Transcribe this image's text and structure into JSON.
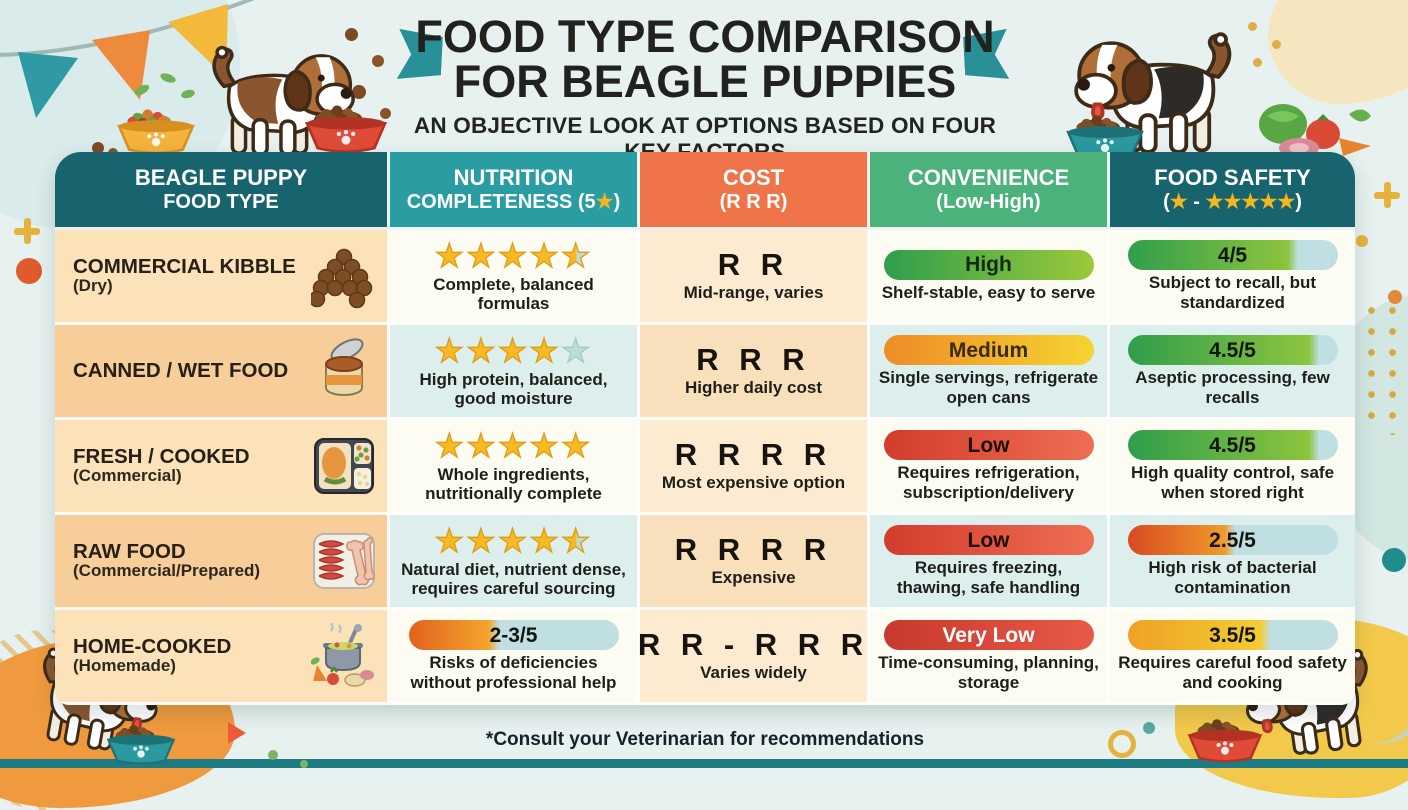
{
  "title": {
    "line1": "FOOD TYPE COMPARISON",
    "line2": "FOR BEAGLE PUPPIES",
    "subtitle": "AN OBJECTIVE LOOK AT OPTIONS BASED ON FOUR KEY FACTORS"
  },
  "footer": {
    "note": "*Consult your Veterinarian for recommendations"
  },
  "theme": {
    "background": "#e7f1ef",
    "header_dark_teal": "#17646e",
    "header_teal": "#2a9da2",
    "header_orange": "#f0744a",
    "header_green": "#4bb27b",
    "ribbon_teal": "#2a9097",
    "star_gold": "#f8ba24",
    "star_empty": "#bcdcd8",
    "pill_rest": "#bfdfe2",
    "bottom_strip": "#1e7b83",
    "blob_orange": "#ef9a3e",
    "blob_yellow": "#f2c94b"
  },
  "table": {
    "headers": [
      {
        "line1": "BEAGLE PUPPY",
        "line2": "FOOD TYPE",
        "color": "#17646e"
      },
      {
        "line1": "NUTRITION",
        "line2": "COMPLETENESS (5★)",
        "color": "#2a9da2"
      },
      {
        "line1": "COST",
        "line2": "(R R R)",
        "color": "#f0744a"
      },
      {
        "line1": "CONVENIENCE",
        "line2": "(Low-High)",
        "color": "#4bb27b"
      },
      {
        "line1": "FOOD SAFETY",
        "line2": "(★ - ★★★★★)",
        "color": "#17646e"
      }
    ],
    "rows": [
      {
        "food": {
          "name": "COMMERCIAL KIBBLE",
          "qualifier": "(Dry)",
          "icon": "kibble-pile-icon"
        },
        "nutrition": {
          "stars": 4.5,
          "note": "Complete, balanced formulas"
        },
        "cost": {
          "symbols": "R R",
          "note": "Mid-range, varies"
        },
        "convenience": {
          "level": "High",
          "note": "Shelf-stable, easy to serve",
          "pill": {
            "from": "#2f9e4c",
            "to": "#9cc93a",
            "text": "#132a10"
          }
        },
        "safety": {
          "score": "4/5",
          "note": "Subject to recall, but standardized",
          "pill": {
            "from": "#2f9e4c",
            "to": "#8cc43d",
            "fill": 0.8,
            "rest": "#bfdfe2",
            "text": "#14140f"
          }
        }
      },
      {
        "food": {
          "name": "CANNED / WET FOOD",
          "qualifier": "",
          "icon": "open-can-icon"
        },
        "nutrition": {
          "stars": 4,
          "note": "High protein, balanced, good moisture"
        },
        "cost": {
          "symbols": "R R R",
          "note": "Higher daily cost"
        },
        "convenience": {
          "level": "Medium",
          "note": "Single servings, refrigerate open cans",
          "pill": {
            "from": "#ee8c26",
            "to": "#f6d431",
            "text": "#3a2a06"
          }
        },
        "safety": {
          "score": "4.5/5",
          "note": "Aseptic processing, few recalls",
          "pill": {
            "from": "#2f9e4c",
            "to": "#8cc43d",
            "fill": 0.9,
            "rest": "#bfdfe2",
            "text": "#14140f"
          }
        }
      },
      {
        "food": {
          "name": "FRESH / COOKED",
          "qualifier": "(Commercial)",
          "icon": "meal-tray-icon"
        },
        "nutrition": {
          "stars": 5,
          "note": "Whole ingredients, nutritionally complete"
        },
        "cost": {
          "symbols": "R R R R",
          "note": "Most expensive option"
        },
        "convenience": {
          "level": "Low",
          "note": "Requires refrigeration, subscription/delivery",
          "pill": {
            "from": "#d23c2c",
            "to": "#ef6e52",
            "text": "#1c0e0b"
          }
        },
        "safety": {
          "score": "4.5/5",
          "note": "High quality control, safe when stored right",
          "pill": {
            "from": "#2f9e4c",
            "to": "#8cc43d",
            "fill": 0.9,
            "rest": "#bfdfe2",
            "text": "#14140f"
          }
        }
      },
      {
        "food": {
          "name": "RAW FOOD",
          "qualifier": "(Commercial/Prepared)",
          "icon": "raw-meat-icon"
        },
        "nutrition": {
          "stars": 4.5,
          "note": "Natural diet, nutrient dense, requires careful sourcing"
        },
        "cost": {
          "symbols": "R R R R",
          "note": "Expensive"
        },
        "convenience": {
          "level": "Low",
          "note": "Requires freezing, thawing, safe handling",
          "pill": {
            "from": "#d23c2c",
            "to": "#ef6e52",
            "text": "#1c0e0b"
          }
        },
        "safety": {
          "score": "2.5/5",
          "note": "High risk of bacterial contamination",
          "pill": {
            "from": "#d84a22",
            "to": "#f0992b",
            "fill": 0.5,
            "rest": "#bfdfe2",
            "text": "#14140f"
          }
        }
      },
      {
        "food": {
          "name": "HOME-COOKED",
          "qualifier": "(Homemade)",
          "icon": "cooking-pot-icon"
        },
        "nutrition": {
          "score": "2-3/5",
          "note": "Risks of deficiencies without professional help",
          "pill": {
            "from": "#e2611f",
            "to": "#f3a52c",
            "fill": 0.42,
            "rest": "#bfdfe2",
            "text": "#14140f"
          }
        },
        "cost": {
          "symbols": "R R - R R R",
          "note": "Varies widely"
        },
        "convenience": {
          "level": "Very Low",
          "note": "Time-consuming, planning, storage",
          "pill": {
            "from": "#c8392e",
            "to": "#e85948",
            "text": "#ffffff"
          }
        },
        "safety": {
          "score": "3.5/5",
          "note": "Requires careful food safety and cooking",
          "pill": {
            "from": "#efa125",
            "to": "#f3cc33",
            "fill": 0.67,
            "rest": "#bfdfe2",
            "text": "#14140f"
          }
        }
      }
    ]
  },
  "chart_data": {
    "type": "table",
    "title": "Food Type Comparison for Beagle Puppies",
    "columns": [
      "Food Type",
      "Nutrition Completeness (of 5)",
      "Cost (R)",
      "Convenience",
      "Food Safety (of 5)"
    ],
    "rows": [
      [
        "Commercial Kibble (Dry)",
        4.5,
        2,
        "High",
        4
      ],
      [
        "Canned / Wet Food",
        4,
        3,
        "Medium",
        4.5
      ],
      [
        "Fresh / Cooked (Commercial)",
        5,
        4,
        "Low",
        4.5
      ],
      [
        "Raw Food (Commercial/Prepared)",
        4.5,
        4,
        "Low",
        2.5
      ],
      [
        "Home-Cooked (Homemade)",
        "2-3",
        "2-3",
        "Very Low",
        3.5
      ]
    ]
  }
}
